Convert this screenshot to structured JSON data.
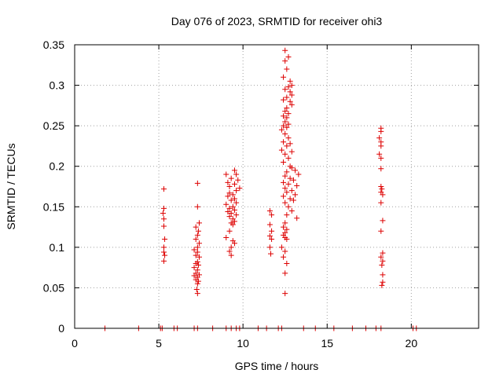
{
  "chart_data": {
    "type": "scatter",
    "title": "Day 076 of 2023, SRMTID for receiver ohi3",
    "xlabel": "GPS time / hours",
    "ylabel": "SRMTID / TECUs",
    "xlim": [
      0,
      24
    ],
    "ylim": [
      0,
      0.35
    ],
    "xticks": [
      0,
      5,
      10,
      15,
      20
    ],
    "yticks": [
      0,
      0.05,
      0.1,
      0.15,
      0.2,
      0.25,
      0.3,
      0.35
    ],
    "xtick_labels": [
      "0",
      "5",
      "10",
      "15",
      "20"
    ],
    "ytick_labels": [
      "0",
      "0.05",
      "0.1",
      "0.15",
      "0.2",
      "0.25",
      "0.3",
      "0.35"
    ],
    "grid": true,
    "marker": "plus",
    "color": "#dd0000",
    "series": [
      {
        "name": "SRMTID",
        "points": [
          [
            1.8,
            0
          ],
          [
            3.8,
            0
          ],
          [
            5.1,
            0
          ],
          [
            5.2,
            0
          ],
          [
            5.9,
            0
          ],
          [
            6.1,
            0
          ],
          [
            7.1,
            0
          ],
          [
            7.3,
            0
          ],
          [
            8.2,
            0
          ],
          [
            9.0,
            0
          ],
          [
            9.3,
            0
          ],
          [
            9.6,
            0
          ],
          [
            9.8,
            0
          ],
          [
            10.9,
            0
          ],
          [
            11.4,
            0
          ],
          [
            12.1,
            0
          ],
          [
            12.3,
            0
          ],
          [
            13.6,
            0
          ],
          [
            14.3,
            0
          ],
          [
            15.4,
            0
          ],
          [
            16.5,
            0
          ],
          [
            17.3,
            0
          ],
          [
            17.9,
            0
          ],
          [
            18.2,
            0
          ],
          [
            20.1,
            0
          ],
          [
            20.3,
            0
          ],
          [
            5.3,
            0.172
          ],
          [
            5.3,
            0.148
          ],
          [
            5.25,
            0.142
          ],
          [
            5.3,
            0.135
          ],
          [
            5.3,
            0.126
          ],
          [
            5.35,
            0.11
          ],
          [
            5.3,
            0.1
          ],
          [
            5.3,
            0.094
          ],
          [
            5.35,
            0.09
          ],
          [
            5.3,
            0.083
          ],
          [
            7.3,
            0.179
          ],
          [
            7.3,
            0.15
          ],
          [
            7.4,
            0.13
          ],
          [
            7.2,
            0.125
          ],
          [
            7.35,
            0.12
          ],
          [
            7.3,
            0.115
          ],
          [
            7.2,
            0.11
          ],
          [
            7.4,
            0.105
          ],
          [
            7.3,
            0.1
          ],
          [
            7.1,
            0.097
          ],
          [
            7.3,
            0.094
          ],
          [
            7.2,
            0.09
          ],
          [
            7.4,
            0.088
          ],
          [
            7.3,
            0.082
          ],
          [
            7.2,
            0.08
          ],
          [
            7.35,
            0.078
          ],
          [
            7.1,
            0.075
          ],
          [
            7.3,
            0.072
          ],
          [
            7.2,
            0.068
          ],
          [
            7.4,
            0.066
          ],
          [
            7.1,
            0.065
          ],
          [
            7.3,
            0.063
          ],
          [
            7.2,
            0.06
          ],
          [
            7.35,
            0.058
          ],
          [
            7.3,
            0.055
          ],
          [
            7.25,
            0.048
          ],
          [
            7.3,
            0.043
          ],
          [
            9.0,
            0.19
          ],
          [
            9.5,
            0.195
          ],
          [
            9.6,
            0.19
          ],
          [
            9.3,
            0.185
          ],
          [
            9.7,
            0.183
          ],
          [
            9.1,
            0.18
          ],
          [
            9.5,
            0.178
          ],
          [
            9.2,
            0.175
          ],
          [
            9.8,
            0.173
          ],
          [
            9.6,
            0.17
          ],
          [
            9.2,
            0.167
          ],
          [
            9.4,
            0.165
          ],
          [
            9.1,
            0.163
          ],
          [
            9.5,
            0.16
          ],
          [
            9.3,
            0.158
          ],
          [
            9.6,
            0.155
          ],
          [
            9.0,
            0.153
          ],
          [
            9.4,
            0.15
          ],
          [
            9.2,
            0.148
          ],
          [
            9.5,
            0.146
          ],
          [
            9.1,
            0.144
          ],
          [
            9.3,
            0.142
          ],
          [
            9.6,
            0.14
          ],
          [
            9.2,
            0.138
          ],
          [
            9.4,
            0.135
          ],
          [
            9.5,
            0.132
          ],
          [
            9.3,
            0.13
          ],
          [
            9.4,
            0.128
          ],
          [
            9.2,
            0.12
          ],
          [
            9.0,
            0.112
          ],
          [
            9.4,
            0.108
          ],
          [
            9.5,
            0.105
          ],
          [
            9.3,
            0.1
          ],
          [
            9.2,
            0.095
          ],
          [
            9.3,
            0.09
          ],
          [
            11.6,
            0.145
          ],
          [
            11.7,
            0.14
          ],
          [
            11.6,
            0.128
          ],
          [
            11.7,
            0.12
          ],
          [
            11.6,
            0.114
          ],
          [
            11.7,
            0.11
          ],
          [
            11.6,
            0.1
          ],
          [
            11.65,
            0.092
          ],
          [
            12.5,
            0.343
          ],
          [
            12.7,
            0.335
          ],
          [
            12.5,
            0.33
          ],
          [
            12.6,
            0.32
          ],
          [
            12.4,
            0.31
          ],
          [
            12.8,
            0.305
          ],
          [
            12.9,
            0.3
          ],
          [
            12.7,
            0.298
          ],
          [
            12.5,
            0.295
          ],
          [
            12.8,
            0.292
          ],
          [
            12.9,
            0.288
          ],
          [
            12.6,
            0.285
          ],
          [
            12.4,
            0.282
          ],
          [
            12.8,
            0.28
          ],
          [
            12.9,
            0.276
          ],
          [
            12.6,
            0.272
          ],
          [
            12.5,
            0.268
          ],
          [
            12.7,
            0.265
          ],
          [
            12.4,
            0.262
          ],
          [
            12.6,
            0.26
          ],
          [
            12.5,
            0.255
          ],
          [
            12.7,
            0.252
          ],
          [
            12.4,
            0.25
          ],
          [
            12.6,
            0.248
          ],
          [
            12.3,
            0.245
          ],
          [
            12.5,
            0.24
          ],
          [
            12.7,
            0.235
          ],
          [
            12.4,
            0.23
          ],
          [
            12.8,
            0.228
          ],
          [
            12.6,
            0.225
          ],
          [
            12.3,
            0.22
          ],
          [
            12.9,
            0.218
          ],
          [
            12.5,
            0.215
          ],
          [
            12.7,
            0.21
          ],
          [
            12.4,
            0.205
          ],
          [
            12.8,
            0.2
          ],
          [
            12.9,
            0.198
          ],
          [
            13.1,
            0.195
          ],
          [
            12.6,
            0.193
          ],
          [
            13.3,
            0.19
          ],
          [
            12.5,
            0.188
          ],
          [
            12.8,
            0.185
          ],
          [
            13.0,
            0.183
          ],
          [
            12.4,
            0.18
          ],
          [
            12.7,
            0.178
          ],
          [
            13.2,
            0.176
          ],
          [
            12.5,
            0.173
          ],
          [
            12.9,
            0.17
          ],
          [
            12.6,
            0.168
          ],
          [
            13.1,
            0.165
          ],
          [
            12.4,
            0.163
          ],
          [
            12.8,
            0.16
          ],
          [
            13.0,
            0.158
          ],
          [
            12.5,
            0.155
          ],
          [
            12.7,
            0.15
          ],
          [
            12.9,
            0.145
          ],
          [
            12.6,
            0.14
          ],
          [
            13.2,
            0.136
          ],
          [
            12.5,
            0.13
          ],
          [
            12.4,
            0.125
          ],
          [
            12.6,
            0.122
          ],
          [
            12.5,
            0.118
          ],
          [
            12.4,
            0.115
          ],
          [
            12.5,
            0.112
          ],
          [
            12.6,
            0.11
          ],
          [
            12.3,
            0.1
          ],
          [
            12.5,
            0.095
          ],
          [
            12.4,
            0.088
          ],
          [
            12.6,
            0.08
          ],
          [
            12.5,
            0.068
          ],
          [
            12.5,
            0.043
          ],
          [
            18.2,
            0.247
          ],
          [
            18.2,
            0.243
          ],
          [
            18.1,
            0.235
          ],
          [
            18.2,
            0.23
          ],
          [
            18.2,
            0.225
          ],
          [
            18.1,
            0.215
          ],
          [
            18.2,
            0.21
          ],
          [
            18.2,
            0.197
          ],
          [
            18.2,
            0.175
          ],
          [
            18.25,
            0.172
          ],
          [
            18.2,
            0.168
          ],
          [
            18.3,
            0.165
          ],
          [
            18.2,
            0.155
          ],
          [
            18.3,
            0.133
          ],
          [
            18.2,
            0.12
          ],
          [
            18.3,
            0.093
          ],
          [
            18.2,
            0.088
          ],
          [
            18.3,
            0.083
          ],
          [
            18.25,
            0.078
          ],
          [
            18.3,
            0.066
          ],
          [
            18.3,
            0.057
          ],
          [
            18.25,
            0.053
          ]
        ]
      }
    ]
  }
}
